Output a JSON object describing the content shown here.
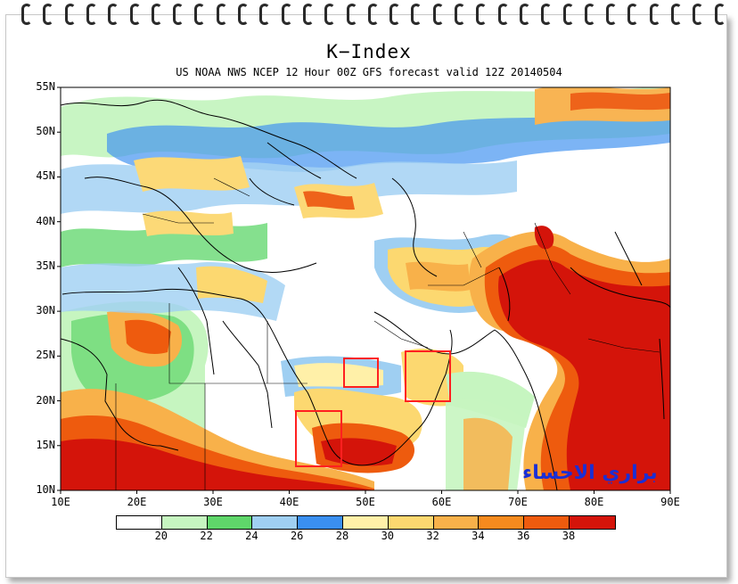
{
  "map": {
    "title": "K−Index",
    "subtitle": "US NOAA NWS NCEP 12 Hour 00Z GFS forecast valid 12Z 20140504",
    "lat_labels": [
      "55N",
      "50N",
      "45N",
      "40N",
      "35N",
      "30N",
      "25N",
      "20N",
      "15N",
      "10N"
    ],
    "lon_labels": [
      "10E",
      "20E",
      "30E",
      "40E",
      "50E",
      "60E",
      "70E",
      "80E",
      "90E"
    ],
    "watermark": "براري الاحساء",
    "highlight_boxes": [
      "box-1",
      "box-2",
      "box-3"
    ]
  },
  "legend": {
    "colors": [
      "#ffffff",
      "#c6f5c0",
      "#5fd66a",
      "#9fcff2",
      "#3a8ff0",
      "#fff0a8",
      "#fcd870",
      "#f8b14a",
      "#f58a1e",
      "#ee5b0e",
      "#d4140a"
    ],
    "labels": [
      "20",
      "22",
      "24",
      "26",
      "28",
      "30",
      "32",
      "34",
      "36",
      "38"
    ]
  },
  "colors": {
    "box_outline": "#ff2020",
    "watermark": "#1a2fd6"
  }
}
